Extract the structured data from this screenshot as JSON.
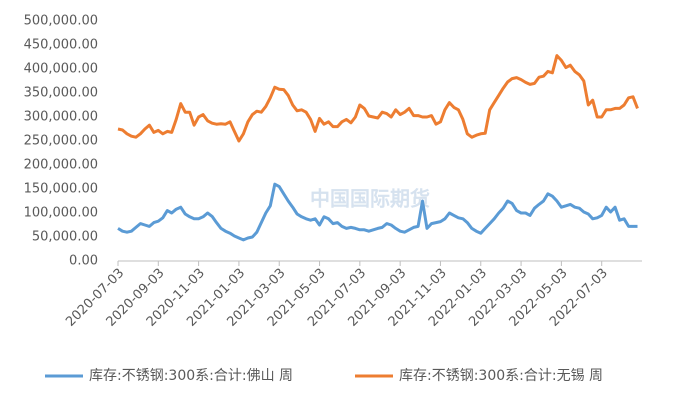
{
  "chart_data": {
    "type": "line",
    "watermark": "中国国际期货",
    "categories": [
      "2020-07-03",
      null,
      null,
      null,
      null,
      null,
      null,
      null,
      null,
      "2020-09-03",
      null,
      null,
      null,
      null,
      null,
      null,
      null,
      null,
      "2020-11-03",
      null,
      null,
      null,
      null,
      null,
      null,
      null,
      null,
      "2021-01-03",
      null,
      null,
      null,
      null,
      null,
      null,
      null,
      null,
      "2021-03-03",
      null,
      null,
      null,
      null,
      null,
      null,
      null,
      null,
      "2021-05-03",
      null,
      null,
      null,
      null,
      null,
      null,
      null,
      null,
      "2021-07-03",
      null,
      null,
      null,
      null,
      null,
      null,
      null,
      null,
      "2021-09-03",
      null,
      null,
      null,
      null,
      null,
      null,
      null,
      null,
      "2021-11-03",
      null,
      null,
      null,
      null,
      null,
      null,
      null,
      null,
      "2022-01-03",
      null,
      null,
      null,
      null,
      null,
      null,
      null,
      null,
      "2022-03-03",
      null,
      null,
      null,
      null,
      null,
      null,
      null,
      null,
      "2022-05-03",
      null,
      null,
      null,
      null,
      null,
      null,
      null,
      null,
      "2022-07-03",
      null,
      null,
      null,
      null,
      null,
      null,
      null,
      null
    ],
    "series": [
      {
        "name": "库存:不锈钢:300系:合计:佛山 周",
        "color": "#5b9bd5",
        "values": [
          68000,
          62000,
          60000,
          62000,
          70000,
          78000,
          75000,
          72000,
          80000,
          83000,
          90000,
          105000,
          100000,
          108000,
          112000,
          98000,
          92000,
          88000,
          88000,
          92000,
          100000,
          93000,
          80000,
          68000,
          62000,
          58000,
          52000,
          48000,
          44000,
          48000,
          50000,
          60000,
          80000,
          100000,
          115000,
          160000,
          155000,
          140000,
          125000,
          112000,
          98000,
          92000,
          88000,
          85000,
          88000,
          75000,
          92000,
          88000,
          78000,
          80000,
          72000,
          68000,
          70000,
          68000,
          65000,
          65000,
          62000,
          65000,
          68000,
          70000,
          78000,
          75000,
          68000,
          62000,
          60000,
          65000,
          70000,
          72000,
          125000,
          68000,
          78000,
          80000,
          82000,
          88000,
          100000,
          95000,
          90000,
          88000,
          80000,
          68000,
          62000,
          58000,
          68000,
          78000,
          88000,
          100000,
          110000,
          125000,
          120000,
          105000,
          100000,
          100000,
          95000,
          110000,
          118000,
          125000,
          140000,
          135000,
          125000,
          112000,
          115000,
          118000,
          112000,
          110000,
          102000,
          98000,
          88000,
          90000,
          95000,
          112000,
          102000,
          112000,
          85000,
          88000,
          72000,
          72000,
          72000
        ]
      },
      {
        "name": "库存:不锈钢:300系:合计:无锡 周",
        "color": "#ed7d31",
        "values": [
          275000,
          273000,
          265000,
          260000,
          258000,
          265000,
          275000,
          283000,
          268000,
          272000,
          265000,
          270000,
          268000,
          295000,
          328000,
          310000,
          310000,
          283000,
          300000,
          305000,
          292000,
          287000,
          285000,
          286000,
          285000,
          290000,
          270000,
          250000,
          265000,
          290000,
          305000,
          312000,
          310000,
          322000,
          340000,
          362000,
          358000,
          357000,
          345000,
          325000,
          313000,
          315000,
          310000,
          295000,
          270000,
          297000,
          285000,
          290000,
          280000,
          280000,
          290000,
          295000,
          288000,
          300000,
          325000,
          318000,
          302000,
          300000,
          298000,
          310000,
          307000,
          300000,
          315000,
          305000,
          310000,
          318000,
          303000,
          303000,
          300000,
          300000,
          303000,
          285000,
          290000,
          315000,
          330000,
          320000,
          315000,
          295000,
          265000,
          258000,
          262000,
          265000,
          266000,
          315000,
          330000,
          345000,
          360000,
          373000,
          380000,
          382000,
          378000,
          372000,
          368000,
          370000,
          383000,
          385000,
          395000,
          392000,
          428000,
          418000,
          403000,
          408000,
          395000,
          388000,
          375000,
          325000,
          335000,
          300000,
          300000,
          315000,
          315000,
          318000,
          318000,
          325000,
          340000,
          342000,
          318000
        ]
      }
    ],
    "ylim": [
      0,
      500000
    ],
    "yticks": [
      {
        "value": 0,
        "label": "0.00"
      },
      {
        "value": 50000,
        "label": "50,000.00"
      },
      {
        "value": 100000,
        "label": "100,000.00"
      },
      {
        "value": 150000,
        "label": "150,000.00"
      },
      {
        "value": 200000,
        "label": "200,000.00"
      },
      {
        "value": 250000,
        "label": "250,000.00"
      },
      {
        "value": 300000,
        "label": "300,000.00"
      },
      {
        "value": 350000,
        "label": "350,000.00"
      },
      {
        "value": 400000,
        "label": "400,000.00"
      },
      {
        "value": 450000,
        "label": "450,000.00"
      },
      {
        "value": 500000,
        "label": "500,000.00"
      }
    ],
    "grid": false,
    "legend": "bottom"
  }
}
